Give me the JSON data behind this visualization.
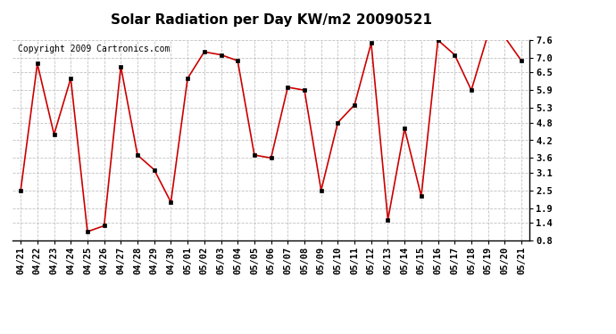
{
  "title": "Solar Radiation per Day KW/m2 20090521",
  "copyright_text": "Copyright 2009 Cartronics.com",
  "x_labels": [
    "04/21",
    "04/22",
    "04/23",
    "04/24",
    "04/25",
    "04/26",
    "04/27",
    "04/28",
    "04/29",
    "04/30",
    "05/01",
    "05/02",
    "05/03",
    "05/04",
    "05/05",
    "05/06",
    "05/07",
    "05/08",
    "05/09",
    "05/10",
    "05/11",
    "05/12",
    "05/13",
    "05/14",
    "05/15",
    "05/16",
    "05/17",
    "05/18",
    "05/19",
    "05/20",
    "05/21"
  ],
  "y_values": [
    2.5,
    6.8,
    4.4,
    6.3,
    1.1,
    1.3,
    6.7,
    3.7,
    3.2,
    2.1,
    6.3,
    7.2,
    7.1,
    6.9,
    3.7,
    3.6,
    6.0,
    5.9,
    2.5,
    4.8,
    5.4,
    7.5,
    1.5,
    4.6,
    2.3,
    7.6,
    7.1,
    5.9,
    7.8,
    7.7,
    6.9
  ],
  "y_ticks": [
    0.8,
    1.4,
    1.9,
    2.5,
    3.1,
    3.6,
    4.2,
    4.8,
    5.3,
    5.9,
    6.5,
    7.0,
    7.6
  ],
  "y_min": 0.8,
  "y_max": 7.6,
  "line_color": "#cc0000",
  "marker_color": "#000000",
  "bg_color": "#ffffff",
  "plot_bg_color": "#ffffff",
  "grid_color": "#bbbbbb",
  "title_fontsize": 11,
  "copyright_fontsize": 7,
  "tick_fontsize": 7.5
}
